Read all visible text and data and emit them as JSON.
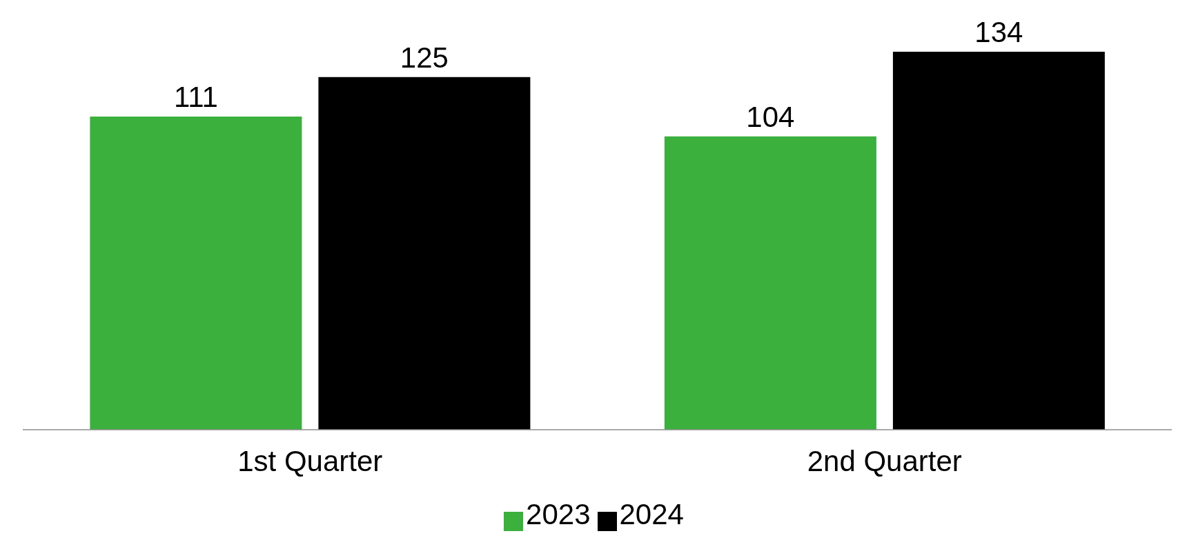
{
  "chart_data": {
    "type": "bar",
    "categories": [
      "1st Quarter",
      "2nd Quarter"
    ],
    "series": [
      {
        "name": "2023",
        "color": "#3cb03c",
        "values": [
          111,
          104
        ]
      },
      {
        "name": "2024",
        "color": "#000000",
        "values": [
          125,
          134
        ]
      }
    ],
    "data_labels": true,
    "legend": "bottom",
    "grid": false
  }
}
